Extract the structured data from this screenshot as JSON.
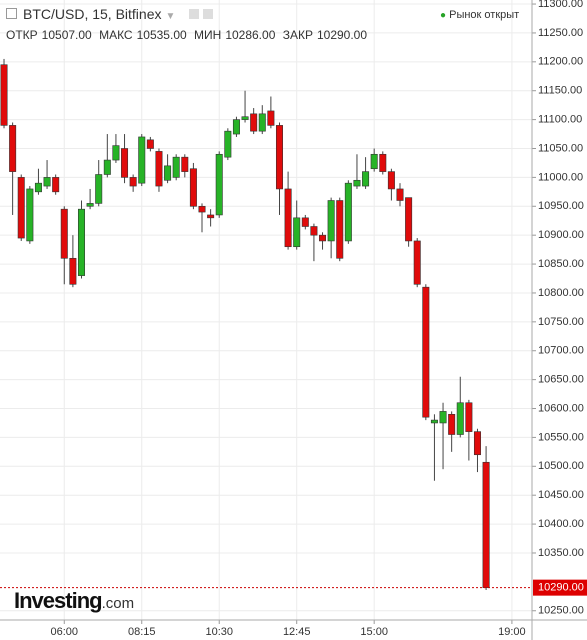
{
  "chart_data": {
    "type": "candlestick",
    "header": {
      "title": "BTC/USD, 15, Bitfinex",
      "open_label": "ОТКР",
      "open": "10507.00",
      "high_label": "МАКС",
      "high": "10535.00",
      "low_label": "МИН",
      "low": "10286.00",
      "close_label": "ЗАКР",
      "close": "10290.00",
      "status": "Рынок открыт"
    },
    "logo": {
      "main": "Investing",
      "suffix": ".com"
    },
    "x": [
      "04:15",
      "04:30",
      "04:45",
      "05:00",
      "05:15",
      "05:30",
      "05:45",
      "06:00",
      "06:15",
      "06:30",
      "06:45",
      "07:00",
      "07:15",
      "07:30",
      "07:45",
      "08:00",
      "08:15",
      "08:30",
      "08:45",
      "09:00",
      "09:15",
      "09:30",
      "09:45",
      "10:00",
      "10:15",
      "10:30",
      "10:45",
      "11:00",
      "11:15",
      "11:30",
      "11:45",
      "12:00",
      "12:15",
      "12:30",
      "12:45",
      "13:00",
      "13:15",
      "13:30",
      "13:45",
      "14:00",
      "14:15",
      "14:30",
      "14:45",
      "15:00",
      "15:15",
      "15:30",
      "15:45",
      "16:00",
      "16:15",
      "16:30",
      "16:45",
      "17:00",
      "17:15",
      "17:30",
      "17:45",
      "18:00",
      "18:15"
    ],
    "open": [
      11195,
      11090,
      11000,
      10890,
      10975,
      10985,
      11000,
      10945,
      10860,
      10830,
      10950,
      10955,
      11005,
      11030,
      11050,
      11000,
      10990,
      11065,
      11045,
      10995,
      11000,
      11035,
      11015,
      10950,
      10935,
      10935,
      11035,
      11075,
      11100,
      11110,
      11080,
      11115,
      11090,
      10980,
      10880,
      10930,
      10915,
      10900,
      10890,
      10960,
      10890,
      10985,
      10985,
      11015,
      11040,
      11010,
      10980,
      10965,
      10890,
      10810,
      10575,
      10575,
      10590,
      10555,
      10610,
      10560,
      10507
    ],
    "high": [
      11205,
      11095,
      11005,
      10985,
      11015,
      11030,
      11005,
      10950,
      10900,
      10960,
      10980,
      11030,
      11075,
      11075,
      11075,
      11005,
      11075,
      11070,
      11050,
      11040,
      11040,
      11040,
      11025,
      10955,
      10945,
      11045,
      11085,
      11105,
      11150,
      11120,
      11125,
      11140,
      11095,
      11010,
      10960,
      10935,
      10920,
      10905,
      10965,
      10965,
      10995,
      11040,
      11035,
      11050,
      11045,
      11015,
      10990,
      10965,
      10895,
      10815,
      10590,
      10610,
      10595,
      10655,
      10615,
      10565,
      10535
    ],
    "low": [
      11085,
      10935,
      10890,
      10885,
      10970,
      10980,
      10970,
      10815,
      10810,
      10825,
      10945,
      10950,
      11000,
      11025,
      10990,
      10975,
      10985,
      11045,
      10975,
      10990,
      10995,
      11000,
      10945,
      10905,
      10915,
      10930,
      11030,
      11070,
      11095,
      11075,
      11075,
      11085,
      10935,
      10875,
      10875,
      10910,
      10855,
      10875,
      10860,
      10855,
      10885,
      10980,
      10980,
      11010,
      11005,
      10960,
      10950,
      10880,
      10810,
      10580,
      10475,
      10495,
      10525,
      10550,
      10510,
      10490,
      10286
    ],
    "close": [
      11090,
      11010,
      10895,
      10980,
      10990,
      11000,
      10975,
      10860,
      10815,
      10945,
      10955,
      11005,
      11030,
      11055,
      11000,
      10985,
      11070,
      11050,
      10985,
      11020,
      11035,
      11010,
      10950,
      10940,
      10930,
      11040,
      11080,
      11100,
      11105,
      11080,
      11110,
      11090,
      10980,
      10880,
      10930,
      10915,
      10900,
      10890,
      10960,
      10860,
      10990,
      10995,
      11010,
      11040,
      11010,
      10980,
      10960,
      10890,
      10815,
      10585,
      10580,
      10595,
      10555,
      10610,
      10560,
      10520,
      10290
    ],
    "up_color": "#27b327",
    "down_color": "#e00b0b",
    "xlim": [
      "04:08",
      "19:35"
    ],
    "xticks": [
      "06:00",
      "08:15",
      "10:30",
      "12:45",
      "15:00",
      "19:00"
    ],
    "ylim": [
      10234,
      11307
    ],
    "yticks": [
      {
        "value": 11300,
        "label": "11300.00"
      },
      {
        "value": 11250,
        "label": "11250.00"
      },
      {
        "value": 11200,
        "label": "11200.00"
      },
      {
        "value": 11150,
        "label": "11150.00"
      },
      {
        "value": 11100,
        "label": "11100.00"
      },
      {
        "value": 11050,
        "label": "11050.00"
      },
      {
        "value": 11000,
        "label": "11000.00"
      },
      {
        "value": 10950,
        "label": "10950.00"
      },
      {
        "value": 10900,
        "label": "10900.00"
      },
      {
        "value": 10850,
        "label": "10850.00"
      },
      {
        "value": 10800,
        "label": "10800.00"
      },
      {
        "value": 10750,
        "label": "10750.00"
      },
      {
        "value": 10700,
        "label": "10700.00"
      },
      {
        "value": 10650,
        "label": "10650.00"
      },
      {
        "value": 10600,
        "label": "10600.00"
      },
      {
        "value": 10550,
        "label": "10550.00"
      },
      {
        "value": 10500,
        "label": "10500.00"
      },
      {
        "value": 10450,
        "label": "10450.00"
      },
      {
        "value": 10400,
        "label": "10400.00"
      },
      {
        "value": 10350,
        "label": "10350.00"
      },
      {
        "value": 10250,
        "label": "10250.00"
      }
    ],
    "current_price": {
      "value": 10290,
      "label": "10290.00"
    },
    "grid": true
  }
}
